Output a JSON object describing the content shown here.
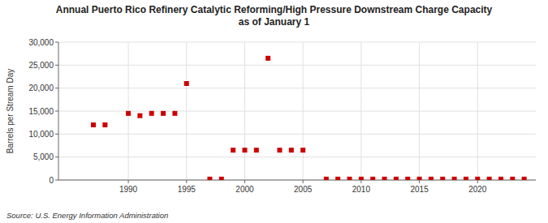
{
  "chart_data": {
    "type": "scatter",
    "title": "Annual Puerto Rico Refinery Catalytic Reforming/High Pressure Downstream Charge Capacity\nas of January 1",
    "ylabel": "Barrels per Stream Day",
    "source": "Source: U.S. Energy Information Administration",
    "x": [
      1987,
      1988,
      1990,
      1991,
      1992,
      1993,
      1994,
      1995,
      1997,
      1998,
      1999,
      2000,
      2001,
      2002,
      2003,
      2004,
      2005,
      2007,
      2008,
      2009,
      2010,
      2011,
      2012,
      2013,
      2014,
      2015,
      2016,
      2017,
      2018,
      2019,
      2020,
      2021,
      2022,
      2023,
      2024
    ],
    "values": [
      12000,
      12000,
      14500,
      14000,
      14500,
      14500,
      14500,
      21000,
      200,
      200,
      6500,
      6500,
      6500,
      26500,
      6500,
      6500,
      6500,
      200,
      200,
      200,
      200,
      200,
      200,
      200,
      200,
      200,
      200,
      200,
      200,
      200,
      200,
      200,
      200,
      200,
      200
    ],
    "color": "#cc0000",
    "marker": "square",
    "xlim": [
      1984,
      2025
    ],
    "ylim": [
      0,
      30000
    ],
    "xticks": [
      1990,
      1995,
      2000,
      2005,
      2010,
      2015,
      2020
    ],
    "yticks": [
      0,
      {
        "value": 5000,
        "label": "5,000"
      },
      {
        "value": 10000,
        "label": "10,000"
      },
      {
        "value": 15000,
        "label": "15,000"
      },
      {
        "value": 20000,
        "label": "20,000"
      },
      {
        "value": 25000,
        "label": "25,000"
      },
      {
        "value": 30000,
        "label": "30,000"
      }
    ],
    "grid": true
  }
}
